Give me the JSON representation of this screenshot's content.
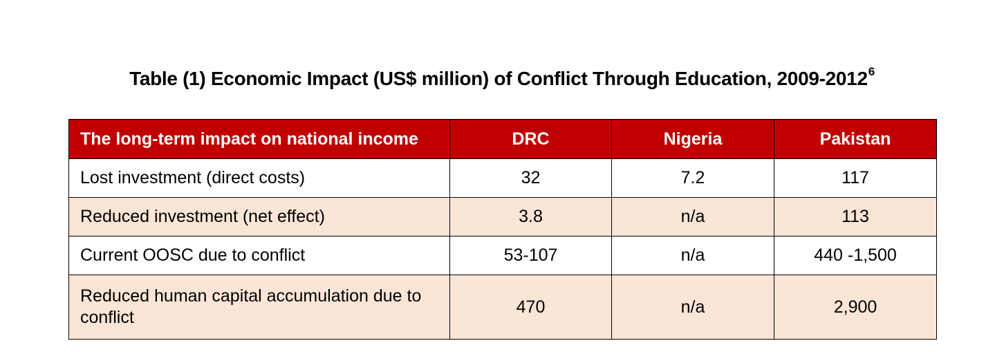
{
  "title": {
    "text": "Table (1) Economic Impact (US$ million) of Conflict Through Education, 2009-2012",
    "footnote": "6"
  },
  "table": {
    "headers": [
      "The long-term impact on national income",
      "DRC",
      "Nigeria",
      "Pakistan"
    ],
    "rows": [
      {
        "label": "Lost investment (direct costs)",
        "values": [
          "32",
          "7.2",
          "117"
        ]
      },
      {
        "label": "Reduced investment (net effect)",
        "values": [
          "3.8",
          "n/a",
          "113"
        ]
      },
      {
        "label": "Current OOSC due to conflict",
        "values": [
          "53-107",
          "n/a",
          "440 -1,500"
        ]
      },
      {
        "label": "Reduced human capital accumulation due to conflict",
        "values": [
          "470",
          "n/a",
          "2,900"
        ]
      }
    ]
  },
  "colors": {
    "header_background": "#c00000",
    "header_text": "#ffffff",
    "shaded_row": "#fbe5d6",
    "border": "#000000"
  }
}
